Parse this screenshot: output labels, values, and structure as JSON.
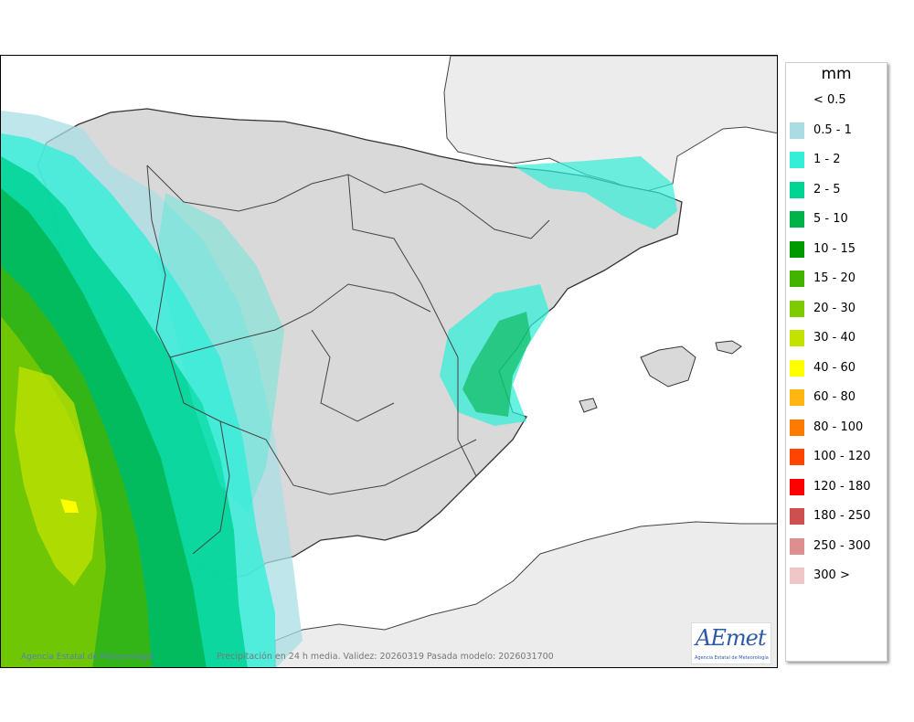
{
  "legend": {
    "unit": "mm",
    "items": [
      {
        "label": "< 0.5",
        "color": "#ffffff"
      },
      {
        "label": "0.5 - 1",
        "color": "#aadde3"
      },
      {
        "label": "1 - 2",
        "color": "#35eed8"
      },
      {
        "label": "2 - 5",
        "color": "#00d493"
      },
      {
        "label": "5 - 10",
        "color": "#00b24a"
      },
      {
        "label": "10 - 15",
        "color": "#009a00"
      },
      {
        "label": "15 - 20",
        "color": "#44b300"
      },
      {
        "label": "20 - 30",
        "color": "#7dcb00"
      },
      {
        "label": "30 - 40",
        "color": "#c4e200"
      },
      {
        "label": "40 - 60",
        "color": "#ffff00"
      },
      {
        "label": "60 - 80",
        "color": "#ffb612"
      },
      {
        "label": "80 - 100",
        "color": "#ff7a00"
      },
      {
        "label": "100 - 120",
        "color": "#ff4400"
      },
      {
        "label": "120 - 180",
        "color": "#ff0000"
      },
      {
        "label": "180 - 250",
        "color": "#cc5050"
      },
      {
        "label": "250 - 300",
        "color": "#dd8e8e"
      },
      {
        "label": "300 >",
        "color": "#efc7c7"
      }
    ]
  },
  "map": {
    "credit": "Agencia Estatal de Meteorología",
    "caption": "Precipitación en 24 h media. Validez: 20260319 Pasada modelo: 2026031700"
  },
  "logo": {
    "text": "AEmet",
    "subtitle": "Agencia Estatal de Meteorología"
  }
}
